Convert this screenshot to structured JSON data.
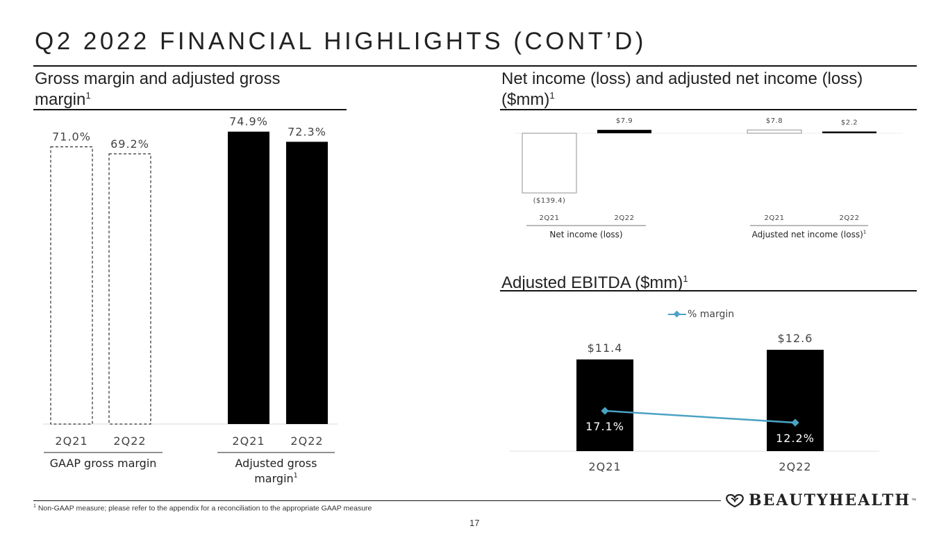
{
  "page": {
    "title": "Q2 2022 FINANCIAL HIGHLIGHTS (CONT’D)",
    "footnote_mark": "1",
    "footnote_text": "Non-GAAP measure; please refer to the appendix for a reconciliation to the appropriate GAAP measure",
    "page_number": "17",
    "logo_text": "BEAUTYHEALTH",
    "logo_tm": "™"
  },
  "sections": {
    "gross_margin": {
      "title": "Gross margin and adjusted gross margin",
      "sup": "1"
    },
    "net_income": {
      "title": "Net income (loss) and adjusted net income (loss) ($mm)",
      "sup": "1"
    },
    "ebitda": {
      "title": "Adjusted EBITDA ($mm)",
      "sup": "1"
    }
  },
  "chart_data": [
    {
      "id": "gross-margin",
      "type": "bar",
      "title": "Gross margin and adjusted gross margin",
      "unit": "%",
      "ylim": [
        0,
        80
      ],
      "groups": [
        {
          "name": "GAAP gross margin",
          "sup": "",
          "style": "dashed-outline",
          "categories": [
            "2Q21",
            "2Q22"
          ],
          "values": [
            71.0,
            69.2
          ],
          "labels": [
            "71.0%",
            "69.2%"
          ]
        },
        {
          "name": "Adjusted gross margin",
          "sup": "1",
          "style": "solid",
          "categories": [
            "2Q21",
            "2Q22"
          ],
          "values": [
            74.9,
            72.3
          ],
          "labels": [
            "74.9%",
            "72.3%"
          ]
        }
      ]
    },
    {
      "id": "net-income",
      "type": "bar",
      "title": "Net income (loss) and adjusted net income (loss) ($mm)",
      "unit": "$mm",
      "ylim": [
        -139.4,
        7.9
      ],
      "groups": [
        {
          "name": "Net income (loss)",
          "sup": "",
          "categories": [
            "2Q21",
            "2Q22"
          ],
          "values": [
            -139.4,
            7.9
          ],
          "labels": [
            "($139.4)",
            "$7.9"
          ],
          "styles": [
            "outline",
            "solid"
          ]
        },
        {
          "name": "Adjusted net income (loss)",
          "sup": "1",
          "categories": [
            "2Q21",
            "2Q22"
          ],
          "values": [
            7.8,
            2.2
          ],
          "labels": [
            "$7.8",
            "$2.2"
          ],
          "styles": [
            "outline",
            "solid"
          ]
        }
      ]
    },
    {
      "id": "adjusted-ebitda",
      "type": "bar",
      "title": "Adjusted EBITDA ($mm)",
      "categories": [
        "2Q21",
        "2Q22"
      ],
      "series": [
        {
          "name": "Adjusted EBITDA",
          "values": [
            11.4,
            12.6
          ],
          "labels": [
            "$11.4",
            "$12.6"
          ]
        },
        {
          "name": "% margin",
          "type": "line",
          "values": [
            17.1,
            12.2
          ],
          "labels": [
            "17.1%",
            "12.2%"
          ]
        }
      ],
      "ylim": [
        0,
        15
      ],
      "legend": "top-center",
      "colors": {
        "bar": "#000000",
        "line": "#4aa3c4"
      }
    }
  ]
}
